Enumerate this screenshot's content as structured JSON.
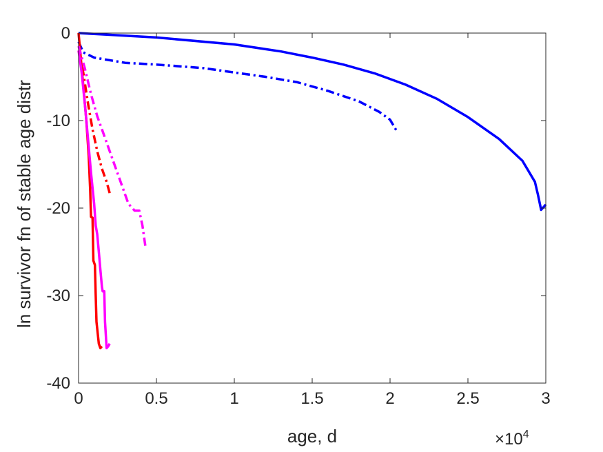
{
  "chart_data": {
    "type": "line",
    "xlabel": "age, d",
    "ylabel": "ln survivor fn of stable age distr",
    "x_exponent_label": "×10",
    "x_exponent_power": "4",
    "xlim": [
      0,
      30000
    ],
    "ylim": [
      -40,
      0
    ],
    "x_ticks": [
      0,
      5000,
      10000,
      15000,
      20000,
      25000,
      30000
    ],
    "x_tick_labels": [
      "0",
      "0.5",
      "1",
      "1.5",
      "2",
      "2.5",
      "3"
    ],
    "y_ticks": [
      0,
      -10,
      -20,
      -30,
      -40
    ],
    "y_tick_labels": [
      "0",
      "-10",
      "-20",
      "-30",
      "-40"
    ],
    "grid": false,
    "box": true,
    "series": [
      {
        "color": "#0000ff",
        "style": "solid",
        "points": [
          [
            0,
            0
          ],
          [
            2000,
            -0.2
          ],
          [
            5000,
            -0.5
          ],
          [
            10000,
            -1.3
          ],
          [
            13000,
            -2.1
          ],
          [
            15000,
            -2.8
          ],
          [
            17000,
            -3.6
          ],
          [
            19000,
            -4.6
          ],
          [
            21000,
            -5.9
          ],
          [
            23000,
            -7.5
          ],
          [
            25000,
            -9.6
          ],
          [
            27000,
            -12.1
          ],
          [
            28500,
            -14.6
          ],
          [
            29300,
            -17.0
          ],
          [
            29500,
            -18.5
          ],
          [
            29700,
            -20.2
          ],
          [
            29900,
            -19.8
          ],
          [
            30000,
            -19.6
          ]
        ]
      },
      {
        "color": "#0000ff",
        "style": "dashdot",
        "points": [
          [
            0,
            -1.0
          ],
          [
            300,
            -2.2
          ],
          [
            1000,
            -2.8
          ],
          [
            3000,
            -3.4
          ],
          [
            5000,
            -3.6
          ],
          [
            8000,
            -4.0
          ],
          [
            10000,
            -4.5
          ],
          [
            12000,
            -5.0
          ],
          [
            14000,
            -5.6
          ],
          [
            16000,
            -6.6
          ],
          [
            18000,
            -7.8
          ],
          [
            19300,
            -9.0
          ],
          [
            20000,
            -9.9
          ],
          [
            20400,
            -11.1
          ]
        ]
      },
      {
        "color": "#ff0000",
        "style": "solid",
        "points": [
          [
            0,
            0
          ],
          [
            150,
            -3
          ],
          [
            300,
            -6
          ],
          [
            500,
            -10
          ],
          [
            650,
            -14
          ],
          [
            750,
            -18
          ],
          [
            800,
            -21
          ],
          [
            900,
            -21.1
          ],
          [
            950,
            -26
          ],
          [
            1050,
            -26.5
          ],
          [
            1100,
            -30
          ],
          [
            1150,
            -33
          ],
          [
            1300,
            -35.5
          ],
          [
            1400,
            -36
          ],
          [
            1500,
            -35.8
          ]
        ]
      },
      {
        "color": "#ff0000",
        "style": "dashdot",
        "points": [
          [
            0,
            -2
          ],
          [
            300,
            -4.5
          ],
          [
            600,
            -8
          ],
          [
            900,
            -11
          ],
          [
            1200,
            -13.5
          ],
          [
            1500,
            -15.5
          ],
          [
            1800,
            -17
          ],
          [
            2000,
            -18.3
          ]
        ]
      },
      {
        "color": "#ff00ff",
        "style": "solid",
        "points": [
          [
            0,
            -2
          ],
          [
            200,
            -4.5
          ],
          [
            400,
            -8
          ],
          [
            600,
            -12
          ],
          [
            800,
            -16
          ],
          [
            1000,
            -19.5
          ],
          [
            1100,
            -22
          ],
          [
            1200,
            -23
          ],
          [
            1300,
            -25
          ],
          [
            1400,
            -27
          ],
          [
            1500,
            -29
          ],
          [
            1550,
            -29.5
          ],
          [
            1650,
            -29.5
          ],
          [
            1700,
            -33
          ],
          [
            1800,
            -36
          ],
          [
            1900,
            -35.8
          ],
          [
            2000,
            -35.5
          ]
        ]
      },
      {
        "color": "#ff00ff",
        "style": "dashdot",
        "points": [
          [
            0,
            -1.5
          ],
          [
            400,
            -4
          ],
          [
            800,
            -7
          ],
          [
            1200,
            -9.5
          ],
          [
            1600,
            -11.5
          ],
          [
            2000,
            -13.5
          ],
          [
            2400,
            -15.5
          ],
          [
            2800,
            -17.5
          ],
          [
            3200,
            -19.5
          ],
          [
            3600,
            -20.3
          ],
          [
            3900,
            -20.3
          ],
          [
            4100,
            -22
          ],
          [
            4300,
            -24.5
          ]
        ]
      }
    ]
  }
}
